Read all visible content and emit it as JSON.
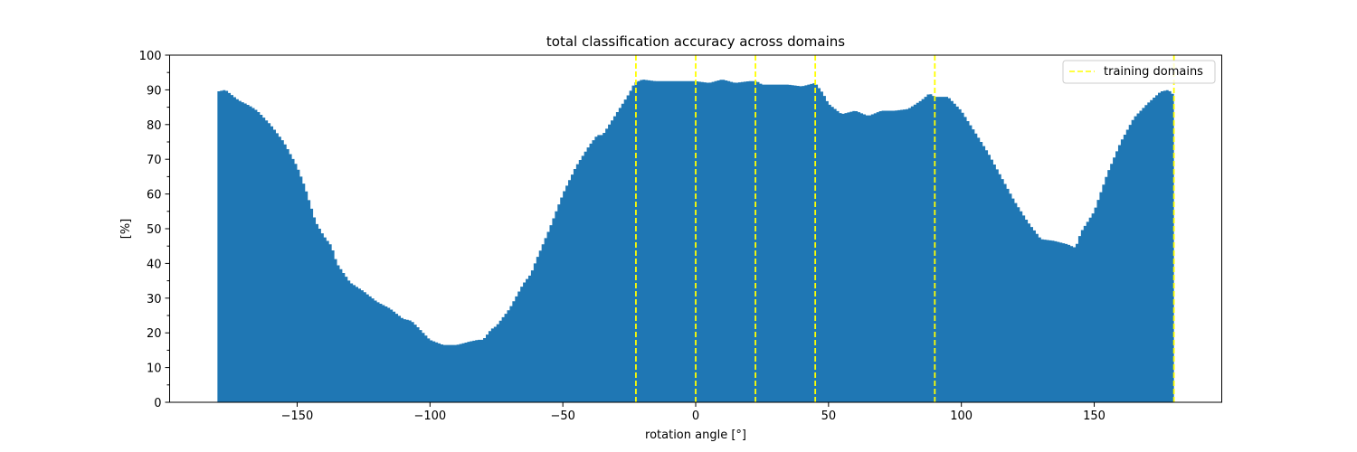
{
  "chart_data": {
    "type": "bar",
    "title": "total classification accuracy across domains",
    "xlabel": "rotation angle [°]",
    "ylabel": "[%]",
    "xlim": [
      -198,
      198
    ],
    "ylim": [
      0,
      100
    ],
    "xticks": [
      -150,
      -100,
      -50,
      0,
      50,
      100,
      150
    ],
    "xtick_labels": [
      "−150",
      "−100",
      "−50",
      "0",
      "50",
      "100",
      "150"
    ],
    "yticks": [
      0,
      10,
      20,
      30,
      40,
      50,
      60,
      70,
      80,
      90,
      100
    ],
    "ytick_labels": [
      "0",
      "10",
      "20",
      "30",
      "40",
      "50",
      "60",
      "70",
      "80",
      "90",
      "100"
    ],
    "bar_color": "#1f77b4",
    "bin_start": -180,
    "bin_width": 1,
    "profile_x": [
      -180,
      -177,
      -172,
      -168,
      -165,
      -160,
      -155,
      -150,
      -147,
      -145,
      -143,
      -140,
      -137,
      -135,
      -130,
      -125,
      -120,
      -115,
      -110,
      -107,
      -105,
      -100,
      -95,
      -90,
      -85,
      -82,
      -80,
      -77,
      -75,
      -70,
      -65,
      -62,
      -60,
      -55,
      -50,
      -45,
      -40,
      -37,
      -35,
      -30,
      -25,
      -23,
      -20,
      -15,
      -10,
      -5,
      0,
      5,
      10,
      15,
      20,
      23,
      25,
      30,
      35,
      40,
      45,
      48,
      50,
      55,
      60,
      65,
      70,
      75,
      80,
      85,
      88,
      90,
      95,
      100,
      105,
      110,
      115,
      120,
      125,
      127,
      130,
      135,
      140,
      143,
      145,
      150,
      155,
      160,
      165,
      170,
      175,
      178,
      180
    ],
    "profile_y": [
      89.5,
      90,
      87,
      85.5,
      84,
      80,
      75,
      68,
      62,
      57,
      52,
      48,
      45,
      40,
      34.5,
      32,
      29,
      27,
      24,
      23.5,
      22,
      18,
      16.5,
      16.5,
      17.5,
      18,
      18,
      21,
      22,
      27,
      34,
      37,
      41,
      50,
      60,
      68,
      74,
      77,
      77,
      83,
      89,
      92,
      93,
      92.5,
      92.5,
      92.5,
      92.5,
      92,
      93,
      92,
      92.5,
      92.5,
      91.5,
      91.5,
      91.5,
      91,
      92,
      89,
      86,
      83,
      84,
      82.5,
      84,
      84,
      84.5,
      87,
      89,
      88,
      88,
      84,
      78,
      72,
      65,
      58,
      52,
      50,
      47,
      46.5,
      45.5,
      44.5,
      49,
      55,
      66,
      75,
      82,
      86,
      89.5,
      90,
      88.5
    ],
    "reference_lines": {
      "label": "training domains",
      "color": "#ffff00",
      "x": [
        -22.5,
        0,
        22.5,
        45,
        90,
        180
      ]
    },
    "legend": {
      "entries": [
        "training domains"
      ],
      "placement": "top-right"
    },
    "grid": false
  }
}
